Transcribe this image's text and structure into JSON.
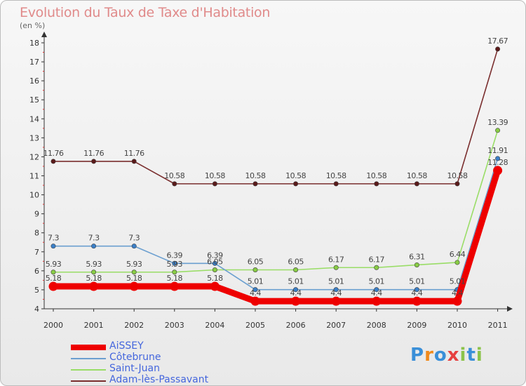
{
  "title": "Evolution du Taux de Taxe d'Habitation",
  "unit": "(en %)",
  "logo": "Proxiti",
  "chart_data": {
    "type": "line",
    "x": [
      "2000",
      "2001",
      "2002",
      "2003",
      "2004",
      "2005",
      "2006",
      "2007",
      "2008",
      "2009",
      "2010",
      "2011"
    ],
    "ylim": [
      4,
      18
    ],
    "yticks": [
      4,
      5,
      6,
      7,
      8,
      9,
      10,
      11,
      12,
      13,
      14,
      15,
      16,
      17,
      18
    ],
    "grid": false,
    "legend": "bottom-left",
    "series": [
      {
        "name": "AiSSEY",
        "color": "#ee0000",
        "values": [
          5.18,
          5.18,
          5.18,
          5.18,
          5.18,
          4.4,
          4.4,
          4.4,
          4.4,
          4.4,
          4.4,
          11.28
        ],
        "labels": [
          "5.18",
          "5.18",
          "5.18",
          "5.18",
          "5.18",
          "4.4",
          "4.4",
          "4.4",
          "4.4",
          "4.4",
          "4.4",
          "11.28"
        ]
      },
      {
        "name": "Côtebrune",
        "color": "#6b9fd0",
        "values": [
          7.3,
          7.3,
          7.3,
          6.39,
          6.39,
          5.01,
          5.01,
          5.01,
          5.01,
          5.01,
          5.01,
          11.91
        ],
        "labels": [
          "7.3",
          "7.3",
          "7.3",
          "6.39",
          "6.39",
          "5.01",
          "5.01",
          "5.01",
          "5.01",
          "5.01",
          "5.01",
          "11.91"
        ]
      },
      {
        "name": "Saint-Juan",
        "color": "#99dd66",
        "values": [
          5.93,
          5.93,
          5.93,
          5.93,
          6.05,
          6.05,
          6.05,
          6.17,
          6.17,
          6.31,
          6.44,
          13.39
        ],
        "labels": [
          "5.93",
          "5.93",
          "5.93",
          "5.93",
          "6.05",
          "6.05",
          "6.05",
          "6.17",
          "6.17",
          "6.31",
          "6.44",
          "13.39"
        ]
      },
      {
        "name": "Adam-lès-Passavant",
        "color": "#7a2e2e",
        "values": [
          11.76,
          11.76,
          11.76,
          10.58,
          10.58,
          10.58,
          10.58,
          10.58,
          10.58,
          10.58,
          10.58,
          17.67
        ],
        "labels": [
          "11.76",
          "11.76",
          "11.76",
          "10.58",
          "10.58",
          "10.58",
          "10.58",
          "10.58",
          "10.58",
          "10.58",
          "10.58",
          "17.67"
        ]
      }
    ]
  }
}
